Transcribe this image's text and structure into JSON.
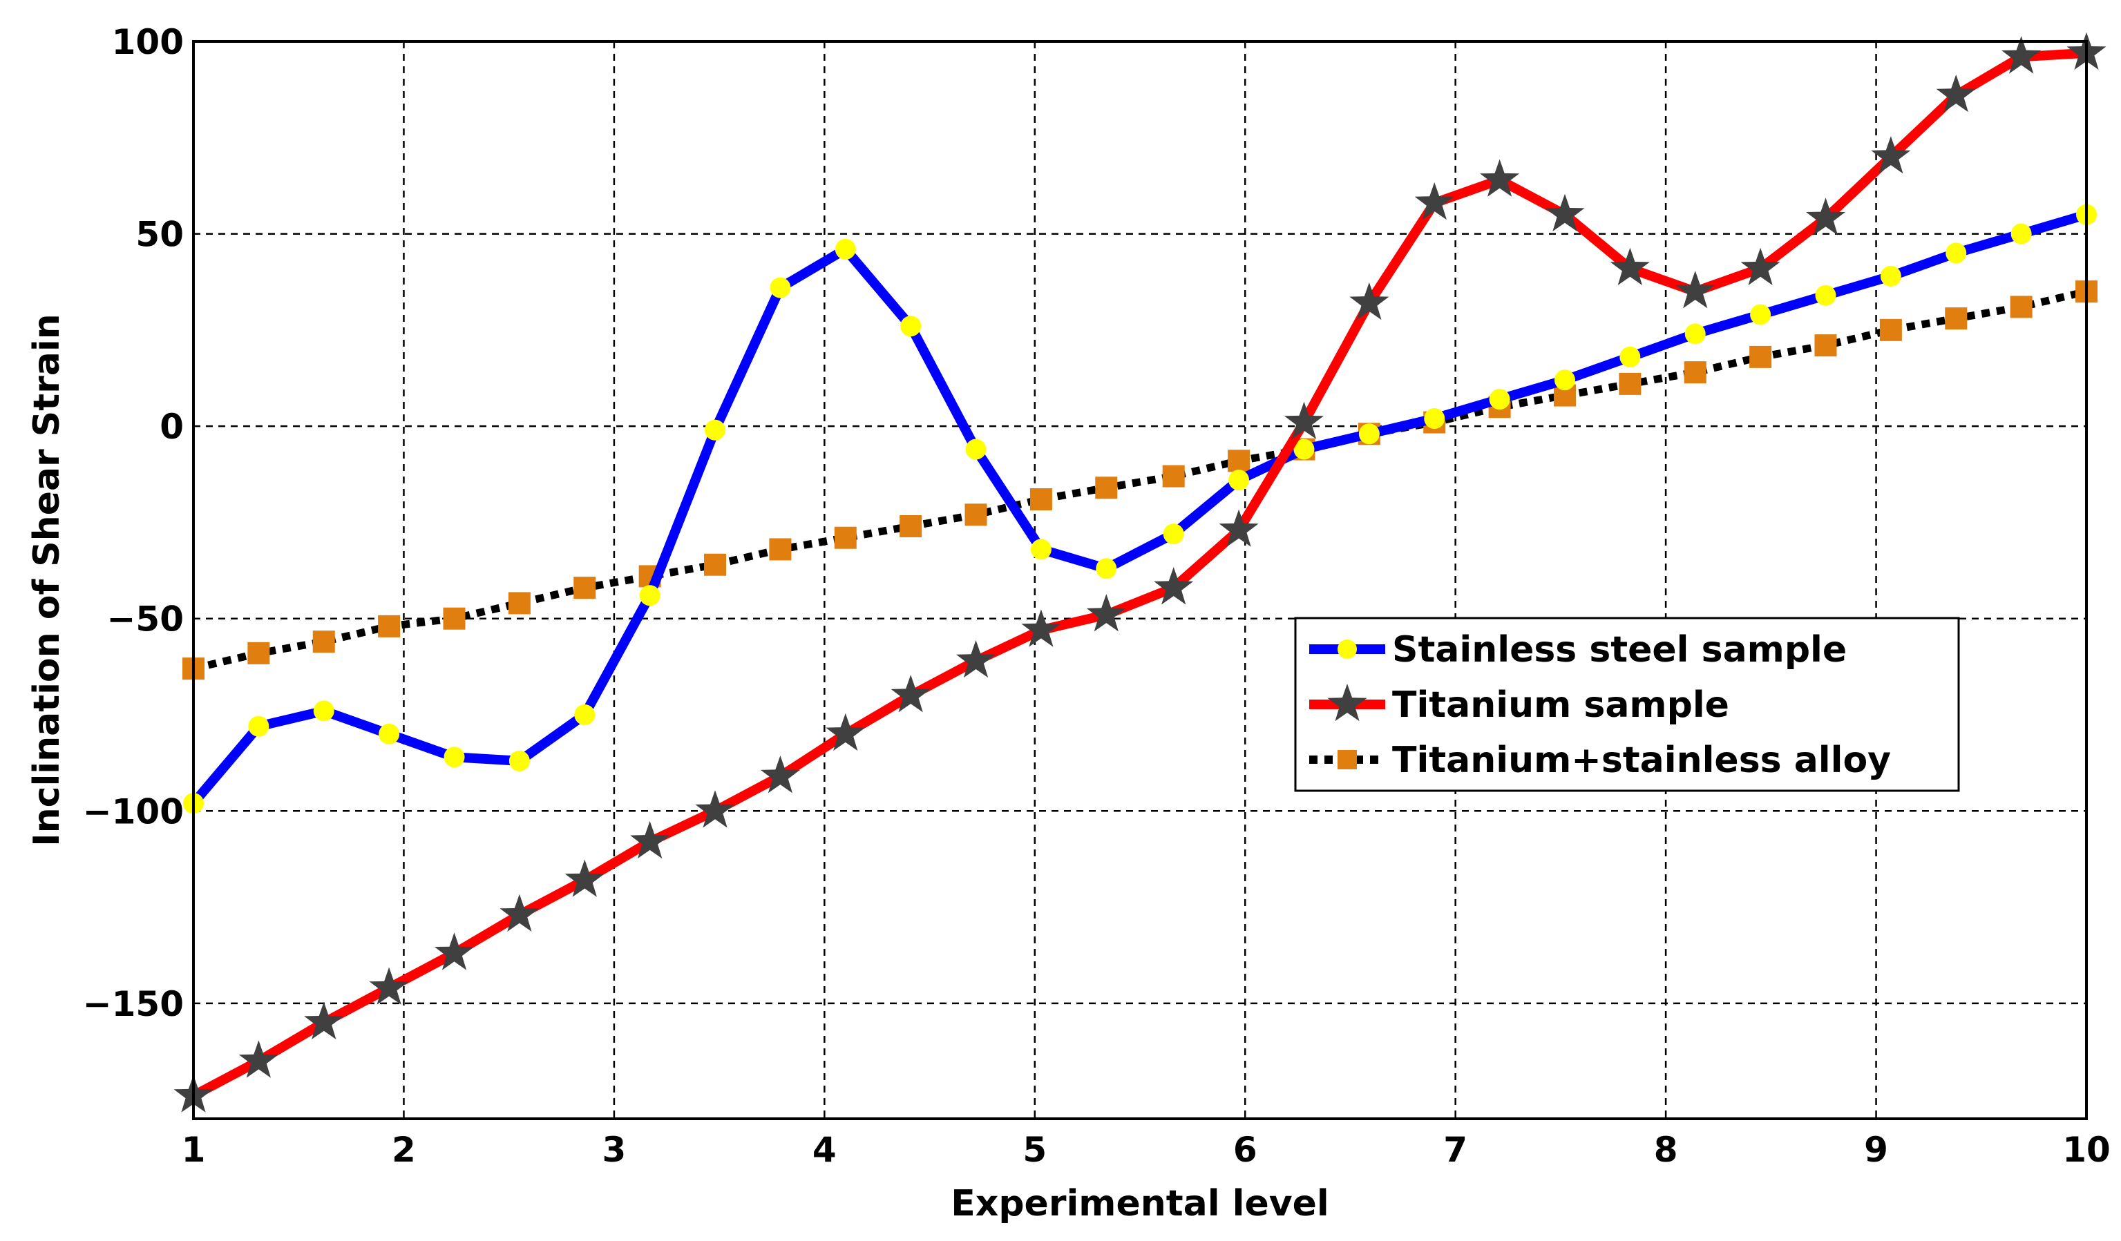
{
  "chart_data": {
    "type": "line",
    "title": "",
    "xlabel": "Experimental level",
    "ylabel": "Inclination of Shear Strain",
    "xlim": [
      1,
      10
    ],
    "ylim": [
      -180,
      100
    ],
    "xticks": [
      1,
      2,
      3,
      4,
      5,
      6,
      7,
      8,
      9,
      10
    ],
    "yticks": [
      100,
      50,
      0,
      -50,
      -100,
      -150
    ],
    "ytick_labels": [
      "100",
      "50",
      "0",
      "−50",
      "−100",
      "−150"
    ],
    "grid": true,
    "legend_position": "center-right",
    "x": [
      1.0,
      1.31,
      1.62,
      1.93,
      2.24,
      2.55,
      2.86,
      3.17,
      3.48,
      3.79,
      4.1,
      4.41,
      4.72,
      5.03,
      5.34,
      5.66,
      5.97,
      6.28,
      6.59,
      6.9,
      7.21,
      7.52,
      7.83,
      8.14,
      8.45,
      8.76,
      9.07,
      9.38,
      9.69,
      10.0
    ],
    "series": [
      {
        "name": "Stainless steel sample",
        "line_color": "#0000FF",
        "marker_color": "#FFFF00",
        "marker": "circle",
        "line_style": "solid",
        "values": [
          -98,
          -78,
          -74,
          -80,
          -86,
          -87,
          -75,
          -44,
          -1,
          36,
          46,
          26,
          -6,
          -32,
          -37,
          -28,
          -14,
          -6,
          -2,
          2,
          7,
          12,
          18,
          24,
          29,
          34,
          39,
          45,
          50,
          55
        ]
      },
      {
        "name": "Titanium sample",
        "line_color": "#FF0000",
        "marker_color": "#404040",
        "marker": "star",
        "line_style": "solid",
        "values": [
          -174,
          -165,
          -155,
          -146,
          -137,
          -127,
          -118,
          -108,
          -100,
          -91,
          -80,
          -70,
          -61,
          -53,
          -49,
          -42,
          -27,
          1,
          32,
          58,
          64,
          55,
          41,
          35,
          41,
          54,
          70,
          86,
          96,
          97
        ]
      },
      {
        "name": "Titanium+stainless alloy",
        "line_color": "#000000",
        "marker_color": "#E07E10",
        "marker": "square",
        "line_style": "dotted",
        "values": [
          -63,
          -59,
          -56,
          -52,
          -50,
          -46,
          -42,
          -39,
          -36,
          -32,
          -29,
          -26,
          -23,
          -19,
          -16,
          -13,
          -9,
          -6,
          -2,
          1,
          5,
          8,
          11,
          14,
          18,
          21,
          25,
          28,
          31,
          35
        ]
      }
    ]
  }
}
